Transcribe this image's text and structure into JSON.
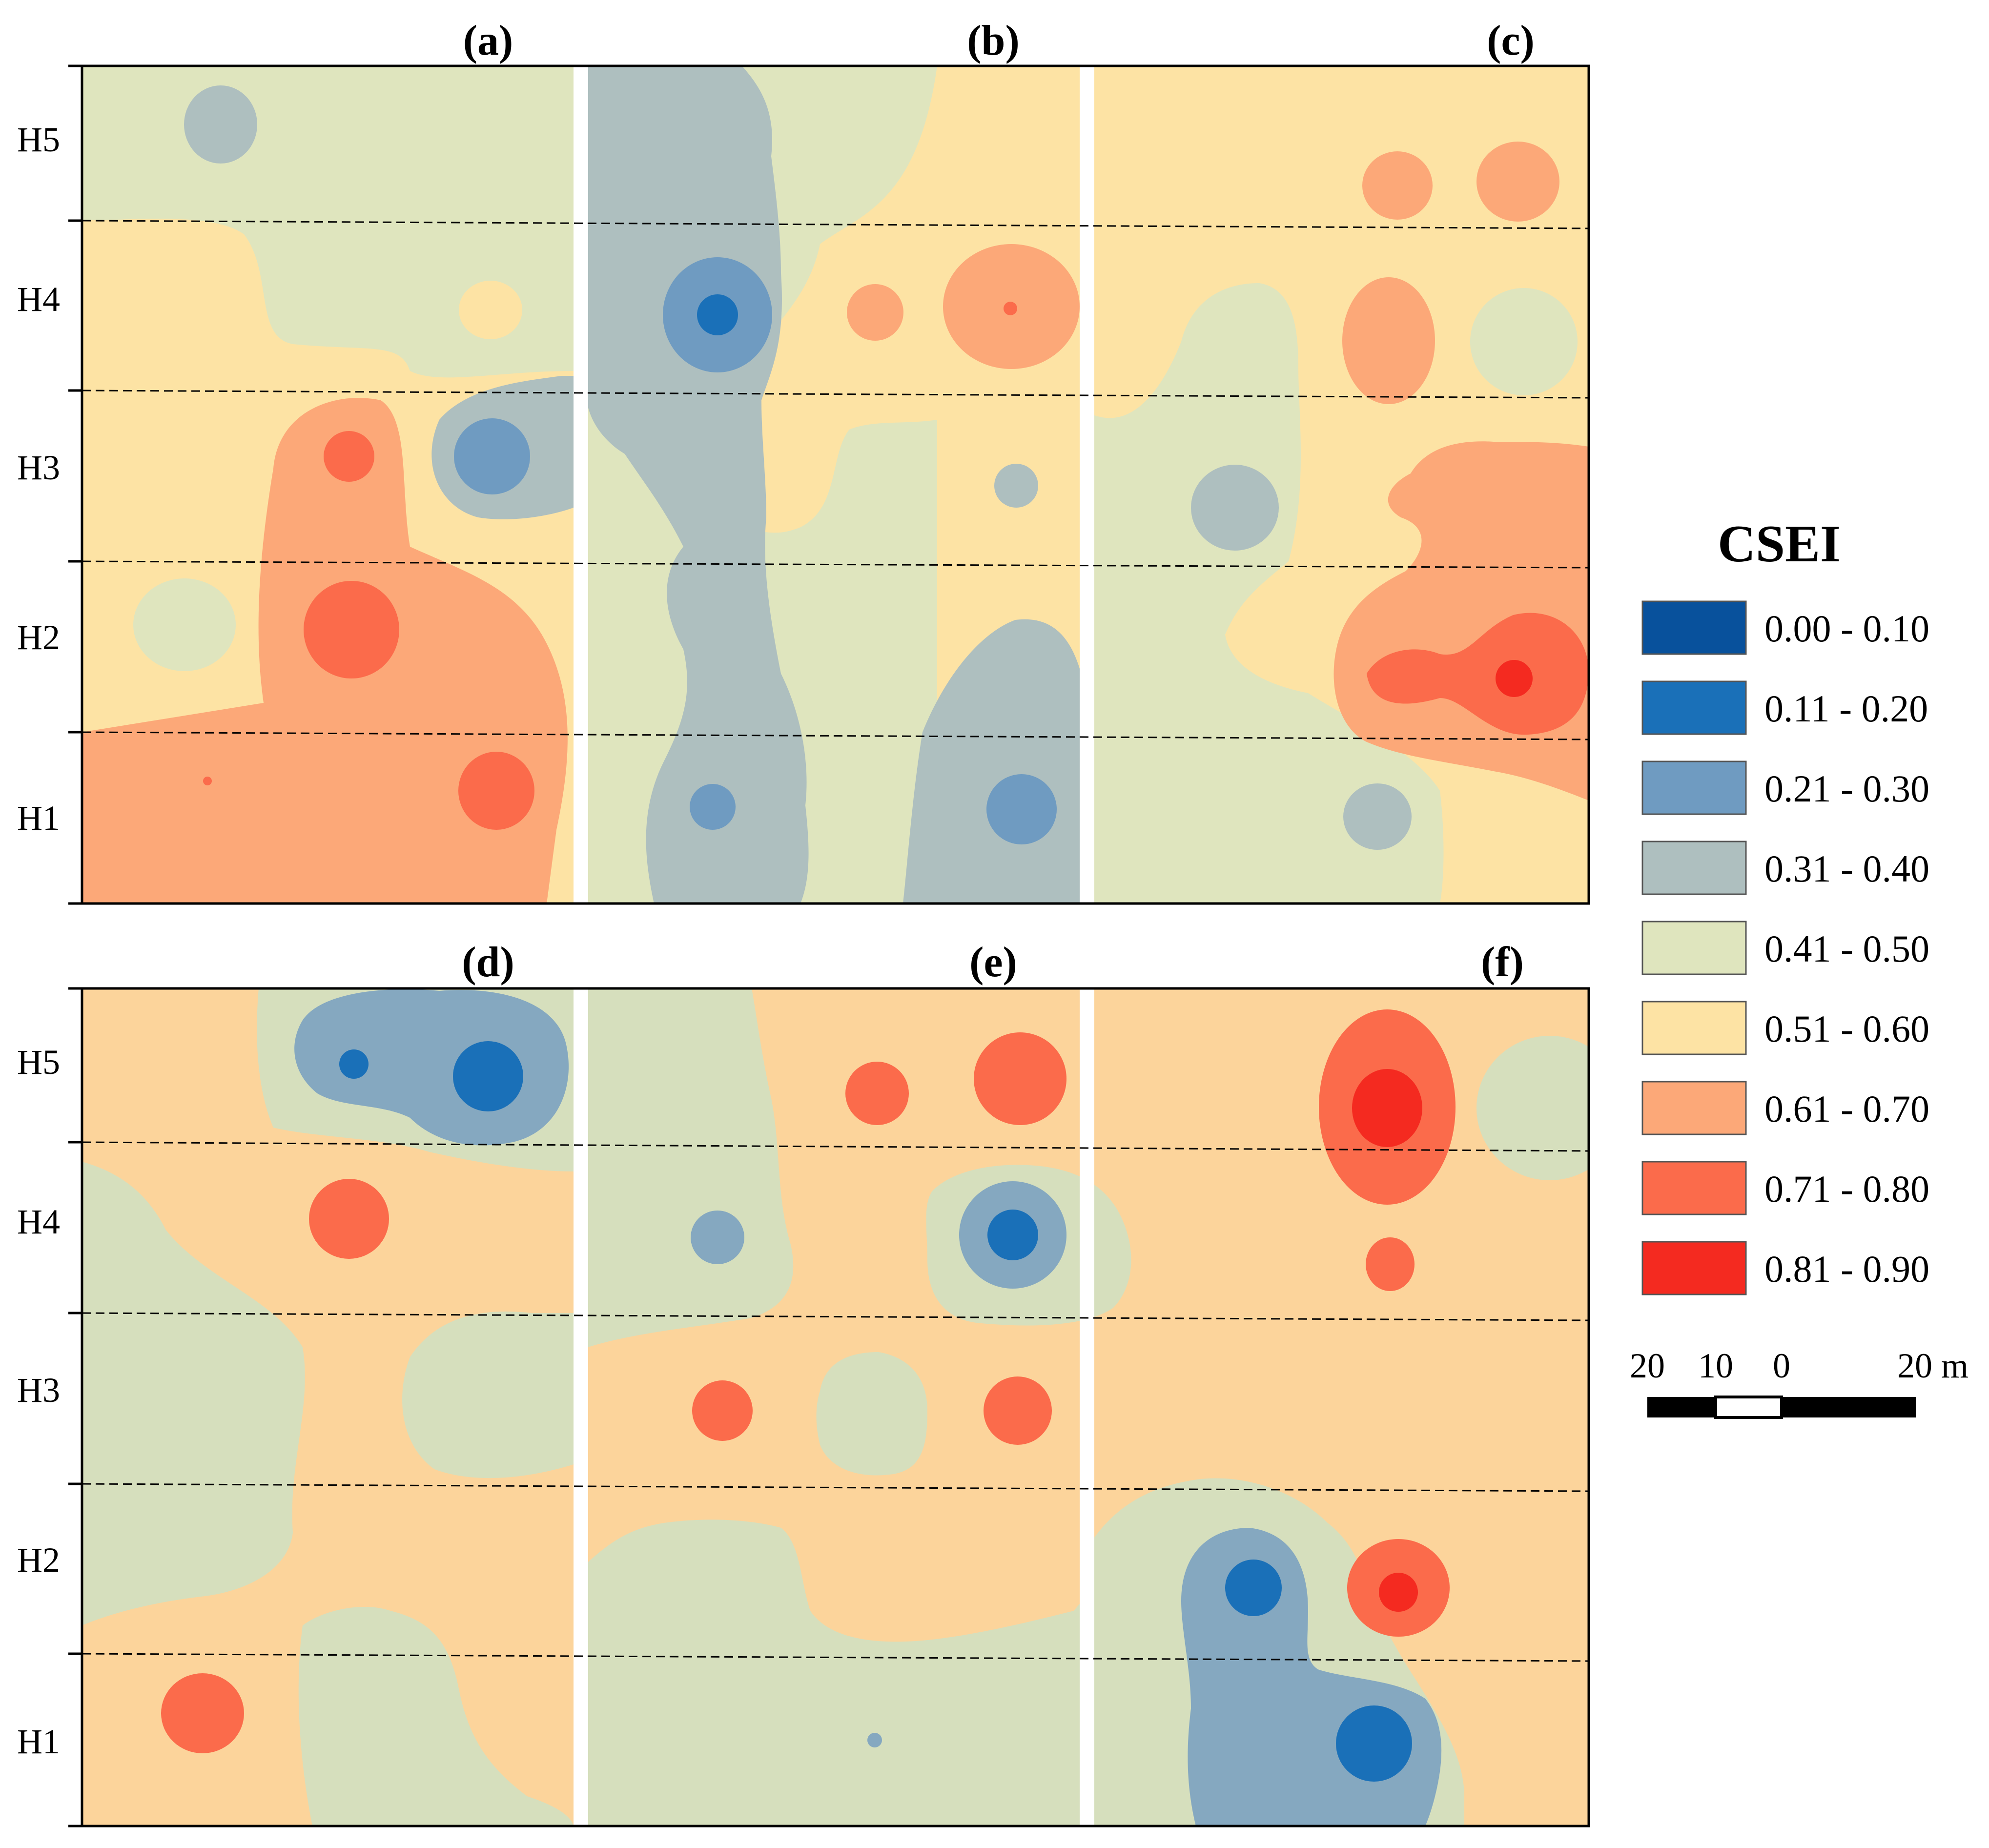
{
  "panels": [
    {
      "label": "(a)"
    },
    {
      "label": "(b)"
    },
    {
      "label": "(c)"
    },
    {
      "label": "(d)"
    },
    {
      "label": "(e)"
    },
    {
      "label": "(f)"
    }
  ],
  "rows": [
    "H5",
    "H4",
    "H3",
    "H2",
    "H1"
  ],
  "legend": {
    "title": "CSEI",
    "classes": [
      {
        "label": "0.00 - 0.10",
        "color": "#08519c"
      },
      {
        "label": "0.11 - 0.20",
        "color": "#1a70b8"
      },
      {
        "label": "0.21 - 0.30",
        "color": "#6f9bc1"
      },
      {
        "label": "0.31 - 0.40",
        "color": "#aebfbf"
      },
      {
        "label": "0.41 - 0.50",
        "color": "#dfe5be"
      },
      {
        "label": "0.51 - 0.60",
        "color": "#fde3a4"
      },
      {
        "label": "0.61 - 0.70",
        "color": "#fca878"
      },
      {
        "label": "0.71 - 0.80",
        "color": "#fb6b4b"
      },
      {
        "label": "0.81 - 0.90",
        "color": "#f42a20"
      }
    ]
  },
  "scale_bar": {
    "ticks": [
      "20",
      "10",
      "0",
      "20 m"
    ]
  },
  "colors": {
    "lower_orange": "#fcd49b",
    "lower_green": "#d6dfbd",
    "lower_blue": "#85a8c0",
    "divider": "#ffffff"
  }
}
